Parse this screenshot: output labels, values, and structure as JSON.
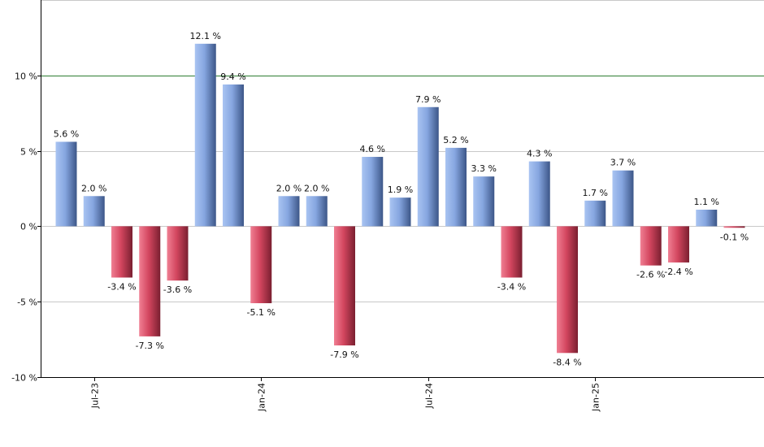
{
  "chart_data": {
    "type": "bar",
    "title": "",
    "xlabel": "",
    "ylabel": "",
    "ylim": [
      -10,
      15
    ],
    "y_ticks": [
      {
        "value": -10,
        "label": "-10 %"
      },
      {
        "value": -5,
        "label": "-5 %"
      },
      {
        "value": 0,
        "label": "0 %"
      },
      {
        "value": 5,
        "label": "5 %"
      },
      {
        "value": 10,
        "label": "10 %"
      }
    ],
    "reference_line": {
      "value": 10,
      "color": "#2e7d32"
    },
    "values": [
      5.6,
      2.0,
      -3.4,
      -7.3,
      -3.6,
      12.1,
      9.4,
      -5.1,
      2.0,
      2.0,
      -7.9,
      4.6,
      1.9,
      7.9,
      5.2,
      3.3,
      -3.4,
      4.3,
      -8.4,
      1.7,
      3.7,
      -2.6,
      -2.4,
      1.1,
      -0.1
    ],
    "value_labels": [
      "5.6 %",
      "2.0 %",
      "-3.4 %",
      "-7.3 %",
      "-3.6 %",
      "12.1 %",
      "9.4 %",
      "-5.1 %",
      "2.0 %",
      "2.0 %",
      "-7.9 %",
      "4.6 %",
      "1.9 %",
      "7.9 %",
      "5.2 %",
      "3.3 %",
      "-3.4 %",
      "4.3 %",
      "-8.4 %",
      "1.7 %",
      "3.7 %",
      "-2.6 %",
      "-2.4 %",
      "1.1 %",
      "-0.1 %"
    ],
    "x_ticks": [
      {
        "index": 1,
        "label": "Jul-23"
      },
      {
        "index": 7,
        "label": "Jan-24"
      },
      {
        "index": 13,
        "label": "Jul-24"
      },
      {
        "index": 19,
        "label": "Jan-25"
      }
    ],
    "colors": {
      "positive": "#7b9bd6",
      "negative": "#c8455e",
      "grid": "#c8c8c8",
      "axis": "#000000"
    }
  }
}
